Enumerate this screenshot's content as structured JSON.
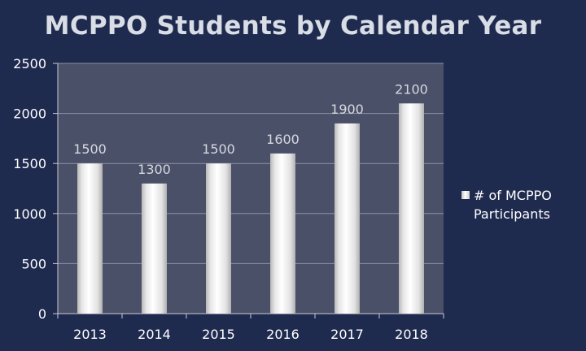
{
  "chart_data": {
    "type": "bar",
    "title": "MCPPO Students by Calendar Year",
    "categories": [
      "2013",
      "2014",
      "2015",
      "2016",
      "2017",
      "2018"
    ],
    "series": [
      {
        "name": "# of MCPPO Participants",
        "values": [
          1500,
          1300,
          1500,
          1600,
          1900,
          2100
        ]
      }
    ],
    "data_labels": [
      "1500",
      "1300",
      "1500",
      "1600",
      "1900",
      "2100"
    ],
    "y_ticks": [
      "0",
      "500",
      "1000",
      "1500",
      "2000",
      "2500"
    ],
    "ylim": [
      0,
      2500
    ],
    "grid": true,
    "legend_position": "right",
    "colors": {
      "background": "#1f2a4f",
      "plot_area": "#4a5068",
      "bar_light": "#ffffff",
      "bar_dark": "#bdbdbd",
      "text": "#ffffff"
    }
  }
}
